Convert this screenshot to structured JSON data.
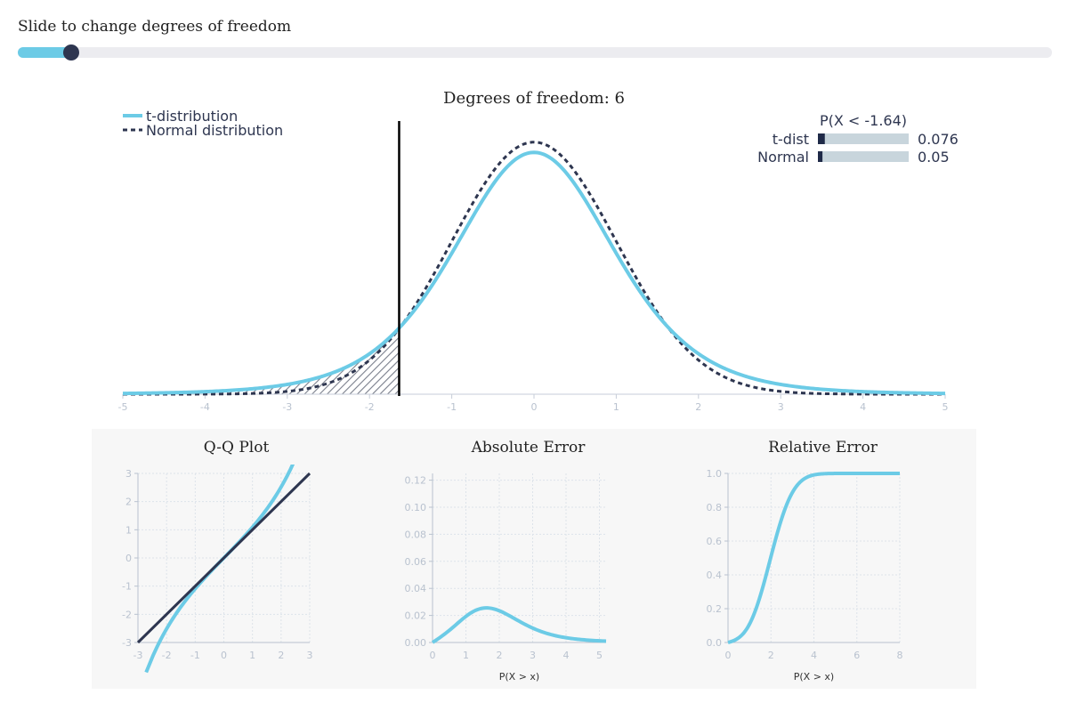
{
  "slider": {
    "label": "Slide to change degrees of freedom",
    "value": 6,
    "min": 1,
    "max": 200,
    "fill_color": "#6ccbe6",
    "thumb_color": "#2e3650"
  },
  "chart_data": [
    {
      "type": "line",
      "title": "Degrees of freedom: 6",
      "degrees_of_freedom": 6,
      "xlim": [
        -5,
        5
      ],
      "x_ticks": [
        "-5",
        "-4",
        "-3",
        "-2",
        "-1",
        "0",
        "1",
        "2",
        "3",
        "4",
        "5"
      ],
      "threshold": -1.64,
      "shaded_region": "x < -1.64 under t-distribution",
      "series": [
        {
          "name": "t-distribution",
          "style": "solid",
          "color": "#6ccbe6"
        },
        {
          "name": "Normal distribution",
          "style": "dashed",
          "color": "#2e3650"
        }
      ],
      "legend": {
        "items": [
          "t-distribution",
          "Normal distribution"
        ],
        "placement": "top-left"
      },
      "probability_box": {
        "title": "P(X < -1.64)",
        "rows": [
          {
            "label": "t-dist",
            "value": 0.076,
            "display": "0.076"
          },
          {
            "label": "Normal",
            "value": 0.05,
            "display": "0.05"
          }
        ],
        "placement": "top-right"
      }
    },
    {
      "type": "line",
      "title": "Q-Q Plot",
      "xlim": [
        -3,
        3
      ],
      "ylim": [
        -3,
        3
      ],
      "x_ticks": [
        "-3",
        "-2",
        "-1",
        "0",
        "1",
        "2",
        "3"
      ],
      "y_ticks": [
        "3",
        "2",
        "1",
        "0",
        "-1",
        "-2",
        "-3"
      ],
      "series": [
        {
          "name": "t quantiles vs normal quantiles",
          "color": "#6ccbe6"
        },
        {
          "name": "reference line y=x",
          "color": "#2e3650"
        }
      ]
    },
    {
      "type": "line",
      "title": "Absolute Error",
      "xlabel": "P(X > x)",
      "xlim": [
        0,
        5.2
      ],
      "ylim": [
        0,
        0.125
      ],
      "x_ticks": [
        "0",
        "1",
        "2",
        "3",
        "4",
        "5"
      ],
      "y_ticks": [
        "0.12",
        "0.10",
        "0.08",
        "0.06",
        "0.04",
        "0.02",
        "0.00"
      ],
      "points": [
        {
          "x": 0,
          "y": 0.0
        },
        {
          "x": 1.6,
          "y": 0.026
        },
        {
          "x": 5.2,
          "y": 0.001
        }
      ]
    },
    {
      "type": "line",
      "title": "Relative Error",
      "xlabel": "P(X > x)",
      "xlim": [
        0,
        8
      ],
      "ylim": [
        0,
        1.0
      ],
      "x_ticks": [
        "0",
        "2",
        "4",
        "6",
        "8"
      ],
      "y_ticks": [
        "1.0",
        "0.8",
        "0.6",
        "0.4",
        "0.2",
        "0.0"
      ],
      "points": [
        {
          "x": 0,
          "y": 0.0
        },
        {
          "x": 2,
          "y": 0.5
        },
        {
          "x": 4,
          "y": 0.99
        },
        {
          "x": 8,
          "y": 1.0
        }
      ]
    }
  ]
}
